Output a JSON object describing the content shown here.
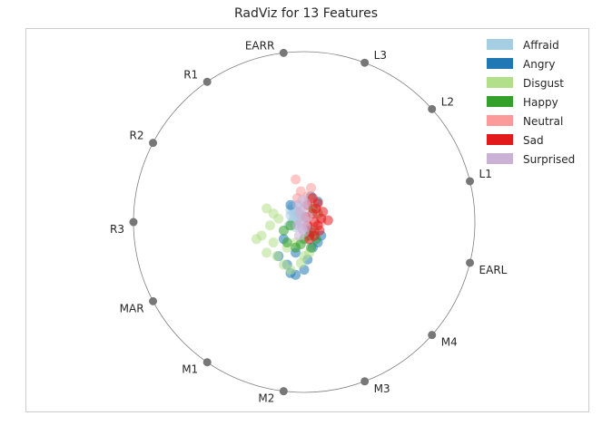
{
  "chart_data": {
    "type": "scatter",
    "kind": "radviz",
    "title": "RadViz for 13 Features",
    "grid": false,
    "legend_position": "top-right",
    "anchors": [
      "EARL",
      "L1",
      "L2",
      "L3",
      "EARR",
      "R1",
      "R2",
      "R3",
      "MAR",
      "M1",
      "M2",
      "M3",
      "M4"
    ],
    "series": [
      {
        "name": "Affraid",
        "color": "#a6cee3",
        "points": [
          [
            -0.07,
            0.09
          ],
          [
            -0.05,
            0.06
          ],
          [
            -0.08,
            0.04
          ],
          [
            -0.06,
            0.02
          ],
          [
            -0.04,
            0.01
          ],
          [
            -0.09,
            -0.02
          ],
          [
            -0.05,
            -0.03
          ],
          [
            -0.07,
            0.0
          ],
          [
            -0.03,
            0.05
          ],
          [
            -0.06,
            0.08
          ],
          [
            -0.04,
            0.1
          ],
          [
            -0.08,
            0.07
          ],
          [
            -0.05,
            -0.01
          ],
          [
            -0.02,
            0.03
          ],
          [
            -0.06,
            0.05
          ]
        ]
      },
      {
        "name": "Angry",
        "color": "#1f78b4",
        "points": [
          [
            -0.15,
            -0.2
          ],
          [
            -0.1,
            -0.25
          ],
          [
            -0.08,
            -0.3
          ],
          [
            -0.05,
            -0.31
          ],
          [
            0.0,
            -0.28
          ],
          [
            0.02,
            -0.22
          ],
          [
            0.05,
            -0.15
          ],
          [
            0.08,
            -0.12
          ],
          [
            0.1,
            -0.08
          ],
          [
            0.08,
            0.12
          ],
          [
            0.04,
            0.15
          ],
          [
            -0.08,
            0.1
          ],
          [
            -0.12,
            -0.1
          ],
          [
            -0.05,
            -0.18
          ],
          [
            0.03,
            -0.05
          ]
        ]
      },
      {
        "name": "Disgust",
        "color": "#b2df8a",
        "points": [
          [
            -0.25,
            -0.08
          ],
          [
            -0.22,
            -0.18
          ],
          [
            -0.28,
            -0.1
          ],
          [
            -0.2,
            -0.02
          ],
          [
            -0.18,
            0.05
          ],
          [
            -0.15,
            0.02
          ],
          [
            -0.12,
            -0.25
          ],
          [
            -0.08,
            -0.28
          ],
          [
            -0.02,
            -0.24
          ],
          [
            0.03,
            -0.18
          ],
          [
            -0.1,
            -0.15
          ],
          [
            -0.22,
            0.08
          ],
          [
            -0.16,
            -0.2
          ],
          [
            -0.05,
            -0.12
          ],
          [
            0.0,
            -0.2
          ],
          [
            -0.18,
            -0.12
          ]
        ]
      },
      {
        "name": "Happy",
        "color": "#33a02c",
        "points": [
          [
            -0.1,
            -0.12
          ],
          [
            -0.05,
            -0.15
          ],
          [
            0.0,
            -0.1
          ],
          [
            0.03,
            -0.08
          ],
          [
            0.06,
            -0.05
          ],
          [
            -0.08,
            -0.02
          ],
          [
            0.08,
            0.05
          ],
          [
            0.05,
            0.08
          ],
          [
            -0.02,
            -0.13
          ],
          [
            0.04,
            -0.15
          ],
          [
            -0.12,
            -0.05
          ],
          [
            0.07,
            -0.1
          ]
        ]
      },
      {
        "name": "Neutral",
        "color": "#fb9a99",
        "points": [
          [
            -0.05,
            0.25
          ],
          [
            0.02,
            0.15
          ],
          [
            0.05,
            0.12
          ],
          [
            -0.02,
            0.18
          ],
          [
            0.08,
            0.05
          ],
          [
            0.1,
            0.0
          ],
          [
            0.04,
            0.2
          ],
          [
            -0.04,
            0.14
          ],
          [
            0.06,
            -0.03
          ]
        ]
      },
      {
        "name": "Sad",
        "color": "#e31a1c",
        "points": [
          [
            0.02,
            0.1
          ],
          [
            0.05,
            0.05
          ],
          [
            0.06,
            0.0
          ],
          [
            0.08,
            -0.02
          ],
          [
            0.04,
            -0.06
          ],
          [
            0.1,
            0.02
          ],
          [
            0.14,
            0.01
          ],
          [
            0.07,
            0.08
          ],
          [
            0.09,
            -0.05
          ],
          [
            0.03,
            -0.1
          ],
          [
            0.01,
            0.03
          ],
          [
            0.05,
            0.14
          ],
          [
            0.11,
            0.06
          ],
          [
            0.06,
            -0.08
          ],
          [
            0.02,
            -0.02
          ],
          [
            0.08,
            0.11
          ]
        ]
      },
      {
        "name": "Surprised",
        "color": "#cab2d6",
        "points": [
          [
            -0.03,
            0.05
          ],
          [
            0.0,
            0.08
          ],
          [
            -0.02,
            0.0
          ],
          [
            0.01,
            -0.03
          ],
          [
            -0.04,
            0.1
          ],
          [
            -0.01,
            0.13
          ],
          [
            0.0,
            -0.06
          ],
          [
            -0.03,
            -0.08
          ],
          [
            0.02,
            0.03
          ],
          [
            -0.02,
            0.06
          ],
          [
            0.01,
            0.11
          ],
          [
            -0.04,
            -0.02
          ],
          [
            0.0,
            0.01
          ],
          [
            -0.01,
            -0.04
          ]
        ]
      }
    ]
  }
}
